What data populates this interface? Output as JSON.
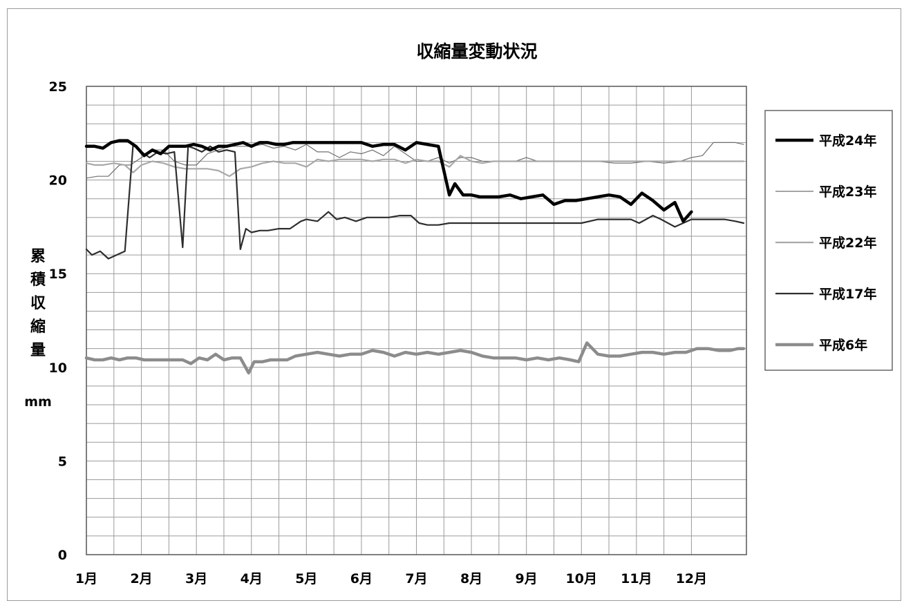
{
  "chart_data": {
    "type": "line",
    "title": "収縮量変動状況",
    "xlabel": "",
    "ylabel": "累積収縮量",
    "yunit": "mm",
    "ylim": [
      0,
      25
    ],
    "yticks": [
      0,
      5,
      10,
      15,
      20,
      25
    ],
    "xlim": [
      1,
      13
    ],
    "xticks": [
      {
        "x": 1,
        "label": "1月"
      },
      {
        "x": 2,
        "label": "2月"
      },
      {
        "x": 3,
        "label": "3月"
      },
      {
        "x": 4,
        "label": "4月"
      },
      {
        "x": 5,
        "label": "5月"
      },
      {
        "x": 6,
        "label": "6月"
      },
      {
        "x": 7,
        "label": "7月"
      },
      {
        "x": 8,
        "label": "8月"
      },
      {
        "x": 9,
        "label": "9月"
      },
      {
        "x": 10,
        "label": "10月"
      },
      {
        "x": 11,
        "label": "11月"
      },
      {
        "x": 12,
        "label": "12月"
      }
    ],
    "grid": true,
    "legend_position": "right",
    "series": [
      {
        "name": "平成24年",
        "color": "#000000",
        "style": "thick",
        "x": [
          1,
          1.15,
          1.3,
          1.45,
          1.6,
          1.75,
          1.9,
          2.05,
          2.2,
          2.35,
          2.5,
          2.65,
          2.8,
          2.95,
          3.1,
          3.25,
          3.4,
          3.55,
          3.7,
          3.85,
          4,
          4.15,
          4.3,
          4.45,
          4.6,
          4.75,
          4.9,
          5.05,
          5.2,
          5.4,
          5.6,
          5.8,
          6,
          6.2,
          6.4,
          6.6,
          6.8,
          7,
          7.2,
          7.4,
          7.6,
          7.7,
          7.85,
          8,
          8.15,
          8.3,
          8.5,
          8.7,
          8.9,
          9.1,
          9.3,
          9.5,
          9.7,
          9.9,
          10.1,
          10.3,
          10.5,
          10.7,
          10.9,
          11.1,
          11.3,
          11.5,
          11.7,
          11.85,
          12
        ],
        "y": [
          21.8,
          21.8,
          21.7,
          22.0,
          22.1,
          22.1,
          21.8,
          21.3,
          21.6,
          21.4,
          21.8,
          21.8,
          21.8,
          21.9,
          21.8,
          21.6,
          21.8,
          21.8,
          21.9,
          22.0,
          21.8,
          22.0,
          22.0,
          21.9,
          21.9,
          22.0,
          22.0,
          22.0,
          22.0,
          22.0,
          22.0,
          22.0,
          22.0,
          21.8,
          21.9,
          21.9,
          21.6,
          22.0,
          21.9,
          21.8,
          19.2,
          19.8,
          19.2,
          19.2,
          19.1,
          19.1,
          19.1,
          19.2,
          19.0,
          19.1,
          19.2,
          18.7,
          18.9,
          18.9,
          19.0,
          19.1,
          19.2,
          19.1,
          18.7,
          19.3,
          18.9,
          18.4,
          18.8,
          17.8,
          18.3
        ]
      },
      {
        "name": "平成23年",
        "color": "#6e6e6e",
        "style": "thin",
        "x": [
          1,
          1.2,
          1.4,
          1.6,
          1.8,
          2,
          2.2,
          2.4,
          2.6,
          2.8,
          3,
          3.2,
          3.4,
          3.6,
          3.8,
          4,
          4.2,
          4.4,
          4.6,
          4.8,
          5,
          5.2,
          5.4,
          5.6,
          5.8,
          6,
          6.2,
          6.4,
          6.6,
          6.8,
          7,
          7.2,
          7.4,
          7.6,
          7.8,
          8,
          8.2,
          8.4,
          8.6,
          8.8,
          9,
          9.2,
          9.4,
          9.6,
          9.8,
          10,
          10.3,
          10.6,
          10.9,
          11.2,
          11.5,
          11.8,
          12,
          12.2,
          12.4,
          12.6,
          12.8,
          12.95
        ],
        "y": [
          20.1,
          20.2,
          20.2,
          20.8,
          20.8,
          21.2,
          21.6,
          21.6,
          21.0,
          20.8,
          20.8,
          21.4,
          21.6,
          21.8,
          21.8,
          21.8,
          21.9,
          21.7,
          21.8,
          21.6,
          21.9,
          21.5,
          21.5,
          21.2,
          21.5,
          21.4,
          21.6,
          21.3,
          21.8,
          21.4,
          21.0,
          21.0,
          21.2,
          20.9,
          21.2,
          21.2,
          21.0,
          21.0,
          21.0,
          21.0,
          21.2,
          21.0,
          21.0,
          21.0,
          21.0,
          21.0,
          21.0,
          20.9,
          20.9,
          21.0,
          20.9,
          21.0,
          21.2,
          21.3,
          22.0,
          22.0,
          22.0,
          21.9
        ]
      },
      {
        "name": "平成22年",
        "color": "#a8a8a8",
        "style": "medium",
        "x": [
          1,
          1.15,
          1.3,
          1.5,
          1.7,
          1.85,
          2,
          2.2,
          2.4,
          2.6,
          2.8,
          3,
          3.2,
          3.4,
          3.6,
          3.8,
          4,
          4.2,
          4.4,
          4.6,
          4.8,
          5,
          5.2,
          5.4,
          5.6,
          5.8,
          6,
          6.2,
          6.4,
          6.6,
          6.8,
          7,
          7.2,
          7.4,
          7.6,
          7.8,
          8,
          8.2,
          8.4,
          8.6,
          8.8,
          9,
          9.5,
          10,
          10.5,
          11,
          11.5,
          12,
          12.5,
          12.95
        ],
        "y": [
          20.9,
          20.8,
          20.8,
          20.9,
          20.8,
          20.4,
          20.8,
          21.0,
          20.9,
          20.7,
          20.6,
          20.6,
          20.6,
          20.5,
          20.2,
          20.6,
          20.7,
          20.9,
          21.0,
          20.9,
          20.9,
          20.7,
          21.1,
          21.0,
          21.1,
          21.1,
          21.1,
          21.0,
          21.1,
          21.1,
          20.9,
          21.1,
          21.0,
          21.0,
          20.7,
          21.3,
          21.0,
          20.9,
          21.0,
          21.0,
          21.0,
          21.0,
          21.0,
          21.0,
          21.0,
          21.0,
          21.0,
          21.0,
          21.0,
          21.0
        ]
      },
      {
        "name": "平成17年",
        "color": "#2d2d2d",
        "style": "medium",
        "x": [
          1,
          1.1,
          1.25,
          1.4,
          1.55,
          1.7,
          1.85,
          2,
          2.15,
          2.3,
          2.45,
          2.6,
          2.75,
          2.85,
          2.95,
          3.1,
          3.25,
          3.4,
          3.55,
          3.7,
          3.8,
          3.9,
          4.0,
          4.15,
          4.3,
          4.5,
          4.7,
          4.9,
          5.0,
          5.2,
          5.4,
          5.55,
          5.7,
          5.9,
          6.1,
          6.3,
          6.5,
          6.7,
          6.9,
          7.05,
          7.2,
          7.4,
          7.6,
          7.8,
          8.0,
          8.5,
          9.0,
          9.5,
          10.0,
          10.3,
          10.6,
          10.9,
          11.05,
          11.3,
          11.45,
          11.7,
          12,
          12.3,
          12.6,
          12.8,
          12.95
        ],
        "y": [
          16.3,
          16.0,
          16.2,
          15.8,
          16.0,
          16.2,
          21.9,
          21.5,
          21.2,
          21.5,
          21.4,
          21.5,
          16.4,
          21.8,
          21.7,
          21.5,
          21.8,
          21.5,
          21.6,
          21.5,
          16.3,
          17.4,
          17.2,
          17.3,
          17.3,
          17.4,
          17.4,
          17.8,
          17.9,
          17.8,
          18.3,
          17.9,
          18.0,
          17.8,
          18.0,
          18.0,
          18.0,
          18.1,
          18.1,
          17.7,
          17.6,
          17.6,
          17.7,
          17.7,
          17.7,
          17.7,
          17.7,
          17.7,
          17.7,
          17.9,
          17.9,
          17.9,
          17.7,
          18.1,
          17.9,
          17.5,
          17.9,
          17.9,
          17.9,
          17.8,
          17.7
        ]
      },
      {
        "name": "平成6年",
        "color": "#8c8c8c",
        "style": "thick",
        "x": [
          1,
          1.15,
          1.3,
          1.45,
          1.6,
          1.75,
          1.9,
          2.05,
          2.2,
          2.4,
          2.6,
          2.75,
          2.9,
          3.05,
          3.2,
          3.35,
          3.5,
          3.65,
          3.8,
          3.95,
          4.05,
          4.2,
          4.35,
          4.5,
          4.65,
          4.8,
          5.0,
          5.2,
          5.4,
          5.6,
          5.8,
          6.0,
          6.2,
          6.4,
          6.6,
          6.8,
          7.0,
          7.2,
          7.4,
          7.6,
          7.8,
          8.0,
          8.2,
          8.4,
          8.6,
          8.8,
          9.0,
          9.2,
          9.4,
          9.6,
          9.8,
          9.95,
          10.1,
          10.3,
          10.5,
          10.7,
          10.9,
          11.1,
          11.3,
          11.5,
          11.7,
          11.9,
          12.1,
          12.3,
          12.5,
          12.7,
          12.85,
          12.95
        ],
        "y": [
          10.5,
          10.4,
          10.4,
          10.5,
          10.4,
          10.5,
          10.5,
          10.4,
          10.4,
          10.4,
          10.4,
          10.4,
          10.2,
          10.5,
          10.4,
          10.7,
          10.4,
          10.5,
          10.5,
          9.7,
          10.3,
          10.3,
          10.4,
          10.4,
          10.4,
          10.6,
          10.7,
          10.8,
          10.7,
          10.6,
          10.7,
          10.7,
          10.9,
          10.8,
          10.6,
          10.8,
          10.7,
          10.8,
          10.7,
          10.8,
          10.9,
          10.8,
          10.6,
          10.5,
          10.5,
          10.5,
          10.4,
          10.5,
          10.4,
          10.5,
          10.4,
          10.3,
          11.3,
          10.7,
          10.6,
          10.6,
          10.7,
          10.8,
          10.8,
          10.7,
          10.8,
          10.8,
          11.0,
          11.0,
          10.9,
          10.9,
          11.0,
          11.0
        ]
      }
    ]
  }
}
